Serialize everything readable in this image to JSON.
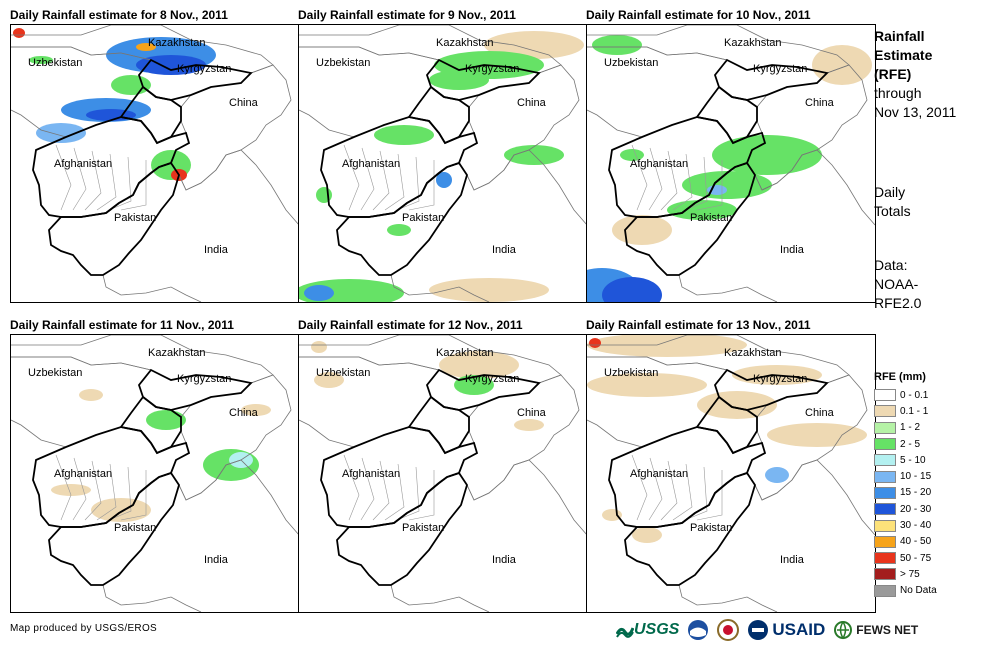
{
  "panels": [
    {
      "title": "Daily Rainfall estimate for 8 Nov., 2011"
    },
    {
      "title": "Daily Rainfall estimate for 9 Nov., 2011"
    },
    {
      "title": "Daily Rainfall estimate for 10 Nov., 2011"
    },
    {
      "title": "Daily Rainfall estimate for 11 Nov., 2011"
    },
    {
      "title": "Daily Rainfall estimate for 12 Nov., 2011"
    },
    {
      "title": "Daily Rainfall estimate for 13 Nov., 2011"
    }
  ],
  "map_labels": {
    "kazakhstan": "Kazakhstan",
    "uzbekistan": "Uzbekistan",
    "kyrgyzstan": "Kyrgyzstan",
    "china": "China",
    "afghanistan": "Afghanistan",
    "pakistan": "Pakistan",
    "india": "India"
  },
  "side": {
    "title_lines": [
      "Rainfall",
      "Estimate",
      "(RFE)"
    ],
    "through": "through",
    "date": "Nov 13, 2011",
    "daily_lines": [
      "Daily",
      "Totals"
    ],
    "data_lines": [
      "Data:",
      "NOAA-",
      "RFE2.0"
    ]
  },
  "legend": {
    "title": "RFE (mm)",
    "items": [
      {
        "label": "0 - 0.1",
        "color": "#ffffff"
      },
      {
        "label": "0.1 - 1",
        "color": "#eed9b3"
      },
      {
        "label": "1 - 2",
        "color": "#b5f2a6"
      },
      {
        "label": "2 - 5",
        "color": "#66e266"
      },
      {
        "label": "5 - 10",
        "color": "#b3f0f0"
      },
      {
        "label": "10 - 15",
        "color": "#7ab6f2"
      },
      {
        "label": "15 - 20",
        "color": "#3d8ee6"
      },
      {
        "label": "20 - 30",
        "color": "#1f55d9"
      },
      {
        "label": "30 - 40",
        "color": "#fde27a"
      },
      {
        "label": "40 - 50",
        "color": "#f6a31a"
      },
      {
        "label": "50 - 75",
        "color": "#e8341c"
      },
      {
        "label": "> 75",
        "color": "#a31d1d"
      },
      {
        "label": "No Data",
        "color": "#9a9a9a"
      }
    ]
  },
  "footer": "Map produced by USGS/EROS",
  "logos": {
    "usgs": "USGS",
    "usaid": "USAID",
    "fews": "FEWS NET"
  }
}
